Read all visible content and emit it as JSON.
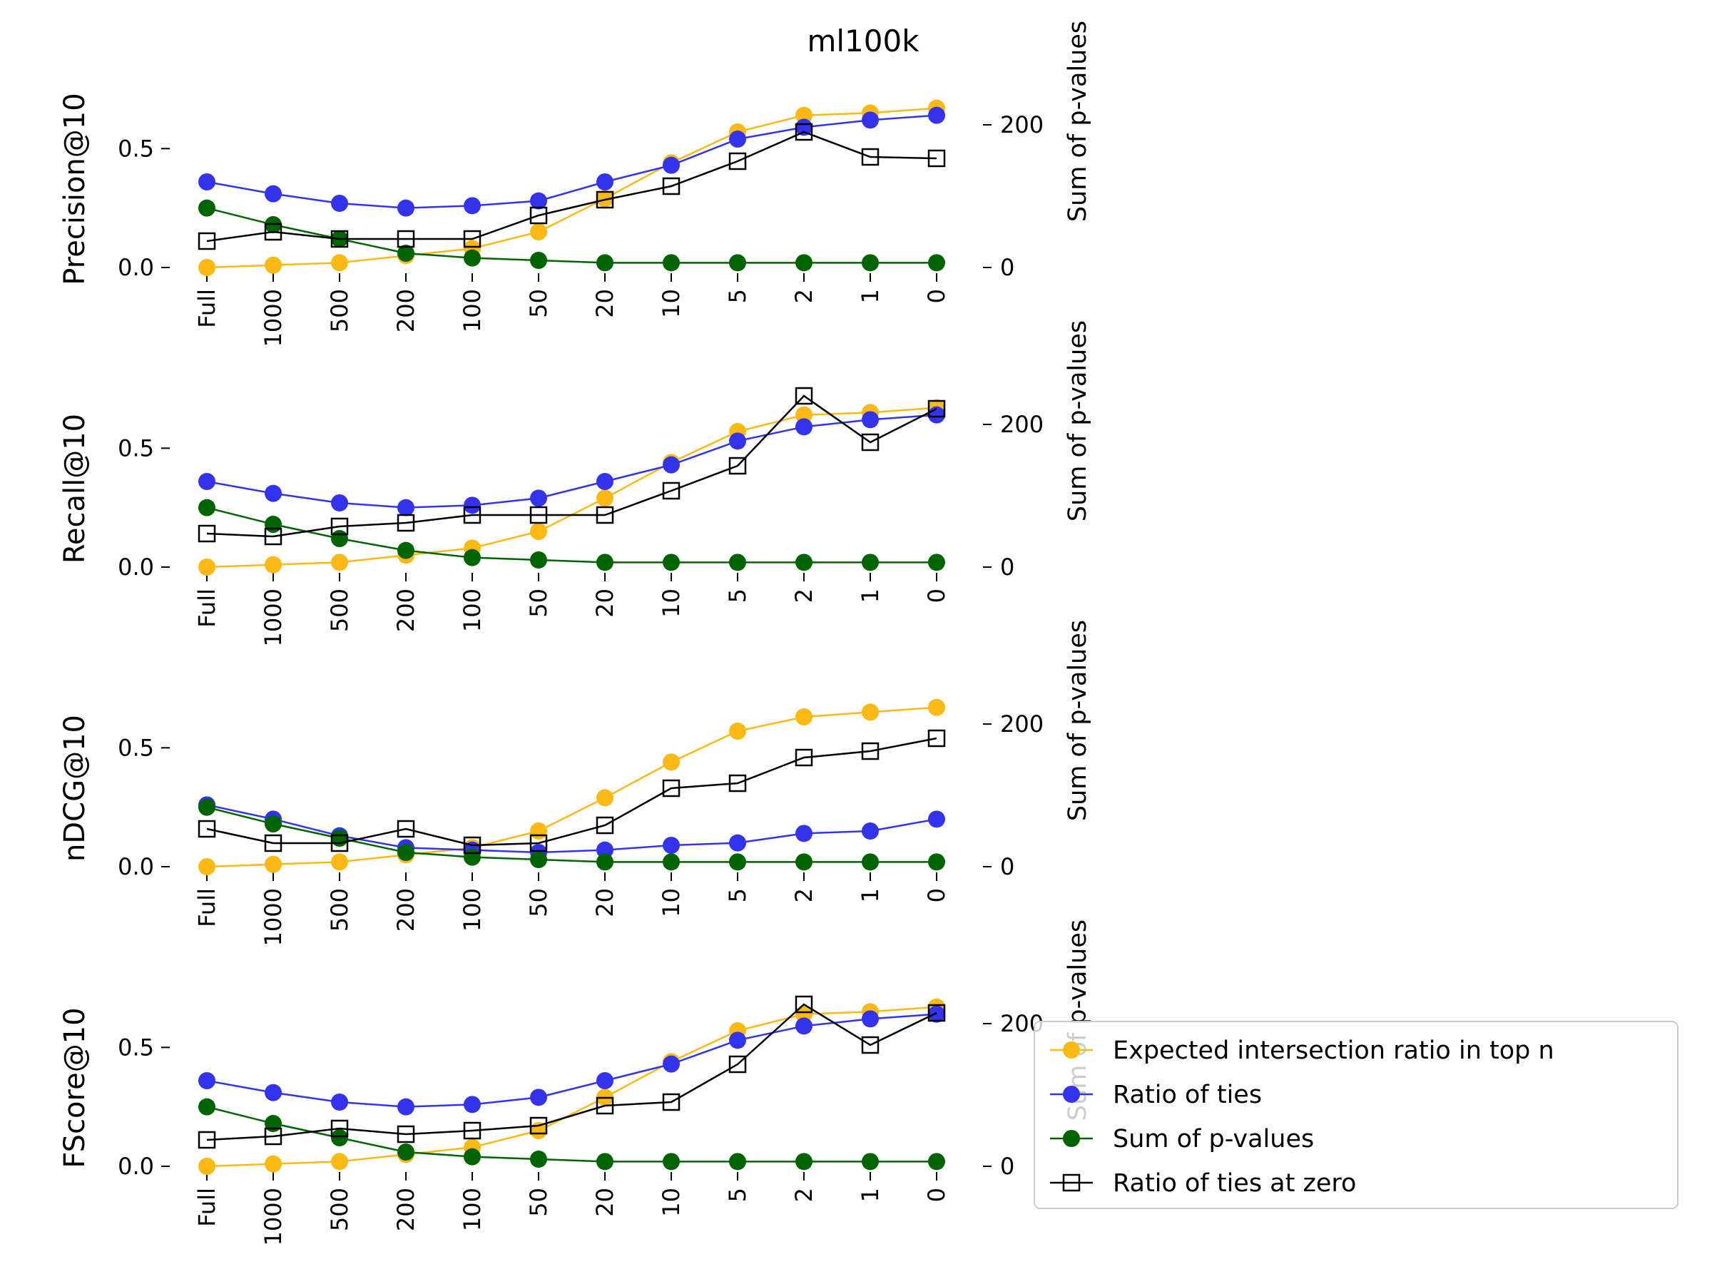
{
  "figure": {
    "title": "ml100k"
  },
  "legend": {
    "placement": "lower-right",
    "entries": [
      {
        "label": "Expected intersection ratio in top n",
        "color": "#FDB913",
        "marker": "circle"
      },
      {
        "label": "Ratio of ties",
        "color": "#3333EE",
        "marker": "circle"
      },
      {
        "label": "Sum of p-values",
        "color": "#006400",
        "marker": "circle"
      },
      {
        "label": "Ratio of ties at zero",
        "color": "#000000",
        "marker": "square-open"
      }
    ]
  },
  "chart_data": [
    {
      "type": "line",
      "categories": [
        "Full",
        "1000",
        "500",
        "200",
        "100",
        "50",
        "20",
        "10",
        "5",
        "2",
        "1",
        "0"
      ],
      "ylabel": "Precision@10",
      "y2label": "Sum of p-values",
      "ylim": [
        0,
        0.75
      ],
      "y2lim": [
        0,
        250
      ],
      "yticks": [
        0.0,
        0.5
      ],
      "y2ticks": [
        0,
        200
      ],
      "series": [
        {
          "name": "Expected intersection ratio in top n",
          "axis": "left",
          "values": [
            0.0,
            0.01,
            0.02,
            0.05,
            0.08,
            0.15,
            0.29,
            0.44,
            0.57,
            0.64,
            0.65,
            0.67
          ]
        },
        {
          "name": "Ratio of ties",
          "axis": "left",
          "values": [
            0.36,
            0.31,
            0.27,
            0.25,
            0.26,
            0.28,
            0.36,
            0.43,
            0.54,
            0.59,
            0.62,
            0.64
          ]
        },
        {
          "name": "Sum of p-values",
          "axis": "left",
          "values": [
            0.25,
            0.18,
            0.12,
            0.06,
            0.04,
            0.03,
            0.02,
            0.02,
            0.02,
            0.02,
            0.02,
            0.02
          ]
        },
        {
          "name": "Ratio of ties at zero",
          "axis": "right",
          "values": [
            37,
            50,
            40,
            40,
            40,
            73,
            95,
            114,
            149,
            190,
            155,
            153
          ]
        }
      ]
    },
    {
      "type": "line",
      "categories": [
        "Full",
        "1000",
        "500",
        "200",
        "100",
        "50",
        "20",
        "10",
        "5",
        "2",
        "1",
        "0"
      ],
      "ylabel": "Recall@10",
      "y2label": "Sum of p-values",
      "ylim": [
        0,
        0.75
      ],
      "y2lim": [
        0,
        250
      ],
      "yticks": [
        0.0,
        0.5
      ],
      "y2ticks": [
        0,
        200
      ],
      "series": [
        {
          "name": "Expected intersection ratio in top n",
          "axis": "left",
          "values": [
            0.0,
            0.01,
            0.02,
            0.05,
            0.08,
            0.15,
            0.29,
            0.44,
            0.57,
            0.64,
            0.65,
            0.67
          ]
        },
        {
          "name": "Ratio of ties",
          "axis": "left",
          "values": [
            0.36,
            0.31,
            0.27,
            0.25,
            0.26,
            0.29,
            0.36,
            0.43,
            0.53,
            0.59,
            0.62,
            0.64
          ]
        },
        {
          "name": "Sum of p-values",
          "axis": "left",
          "values": [
            0.25,
            0.18,
            0.12,
            0.07,
            0.04,
            0.03,
            0.02,
            0.02,
            0.02,
            0.02,
            0.02,
            0.02
          ]
        },
        {
          "name": "Ratio of ties at zero",
          "axis": "right",
          "values": [
            47,
            43,
            57,
            62,
            73,
            73,
            73,
            107,
            142,
            240,
            175,
            222
          ]
        }
      ]
    },
    {
      "type": "line",
      "categories": [
        "Full",
        "1000",
        "500",
        "200",
        "100",
        "50",
        "20",
        "10",
        "5",
        "2",
        "1",
        "0"
      ],
      "ylabel": "nDCG@10",
      "y2label": "Sum of p-values",
      "ylim": [
        0,
        0.75
      ],
      "y2lim": [
        0,
        250
      ],
      "yticks": [
        0.0,
        0.5
      ],
      "y2ticks": [
        0,
        200
      ],
      "series": [
        {
          "name": "Expected intersection ratio in top n",
          "axis": "left",
          "values": [
            0.0,
            0.01,
            0.02,
            0.05,
            0.08,
            0.15,
            0.29,
            0.44,
            0.57,
            0.63,
            0.65,
            0.67
          ]
        },
        {
          "name": "Ratio of ties",
          "axis": "left",
          "values": [
            0.26,
            0.2,
            0.13,
            0.08,
            0.07,
            0.06,
            0.07,
            0.09,
            0.1,
            0.14,
            0.15,
            0.2
          ]
        },
        {
          "name": "Sum of p-values",
          "axis": "left",
          "values": [
            0.25,
            0.18,
            0.12,
            0.06,
            0.04,
            0.03,
            0.02,
            0.02,
            0.02,
            0.02,
            0.02,
            0.02
          ]
        },
        {
          "name": "Ratio of ties at zero",
          "axis": "right",
          "values": [
            53,
            33,
            33,
            53,
            30,
            33,
            58,
            110,
            117,
            153,
            162,
            180
          ]
        }
      ]
    },
    {
      "type": "line",
      "categories": [
        "Full",
        "1000",
        "500",
        "200",
        "100",
        "50",
        "20",
        "10",
        "5",
        "2",
        "1",
        "0"
      ],
      "ylabel": "FScore@10",
      "y2label": "Sum of p-values",
      "ylim": [
        0,
        0.75
      ],
      "y2lim": [
        0,
        250
      ],
      "yticks": [
        0.0,
        0.5
      ],
      "y2ticks": [
        0,
        200
      ],
      "series": [
        {
          "name": "Expected intersection ratio in top n",
          "axis": "left",
          "values": [
            0.0,
            0.01,
            0.02,
            0.05,
            0.08,
            0.15,
            0.29,
            0.44,
            0.57,
            0.64,
            0.65,
            0.67
          ]
        },
        {
          "name": "Ratio of ties",
          "axis": "left",
          "values": [
            0.36,
            0.31,
            0.27,
            0.25,
            0.26,
            0.29,
            0.36,
            0.43,
            0.53,
            0.59,
            0.62,
            0.64
          ]
        },
        {
          "name": "Sum of p-values",
          "axis": "left",
          "values": [
            0.25,
            0.18,
            0.12,
            0.06,
            0.04,
            0.03,
            0.02,
            0.02,
            0.02,
            0.02,
            0.02,
            0.02
          ]
        },
        {
          "name": "Ratio of ties at zero",
          "axis": "right",
          "values": [
            37,
            42,
            53,
            45,
            50,
            57,
            85,
            90,
            143,
            227,
            170,
            215
          ]
        }
      ]
    }
  ]
}
